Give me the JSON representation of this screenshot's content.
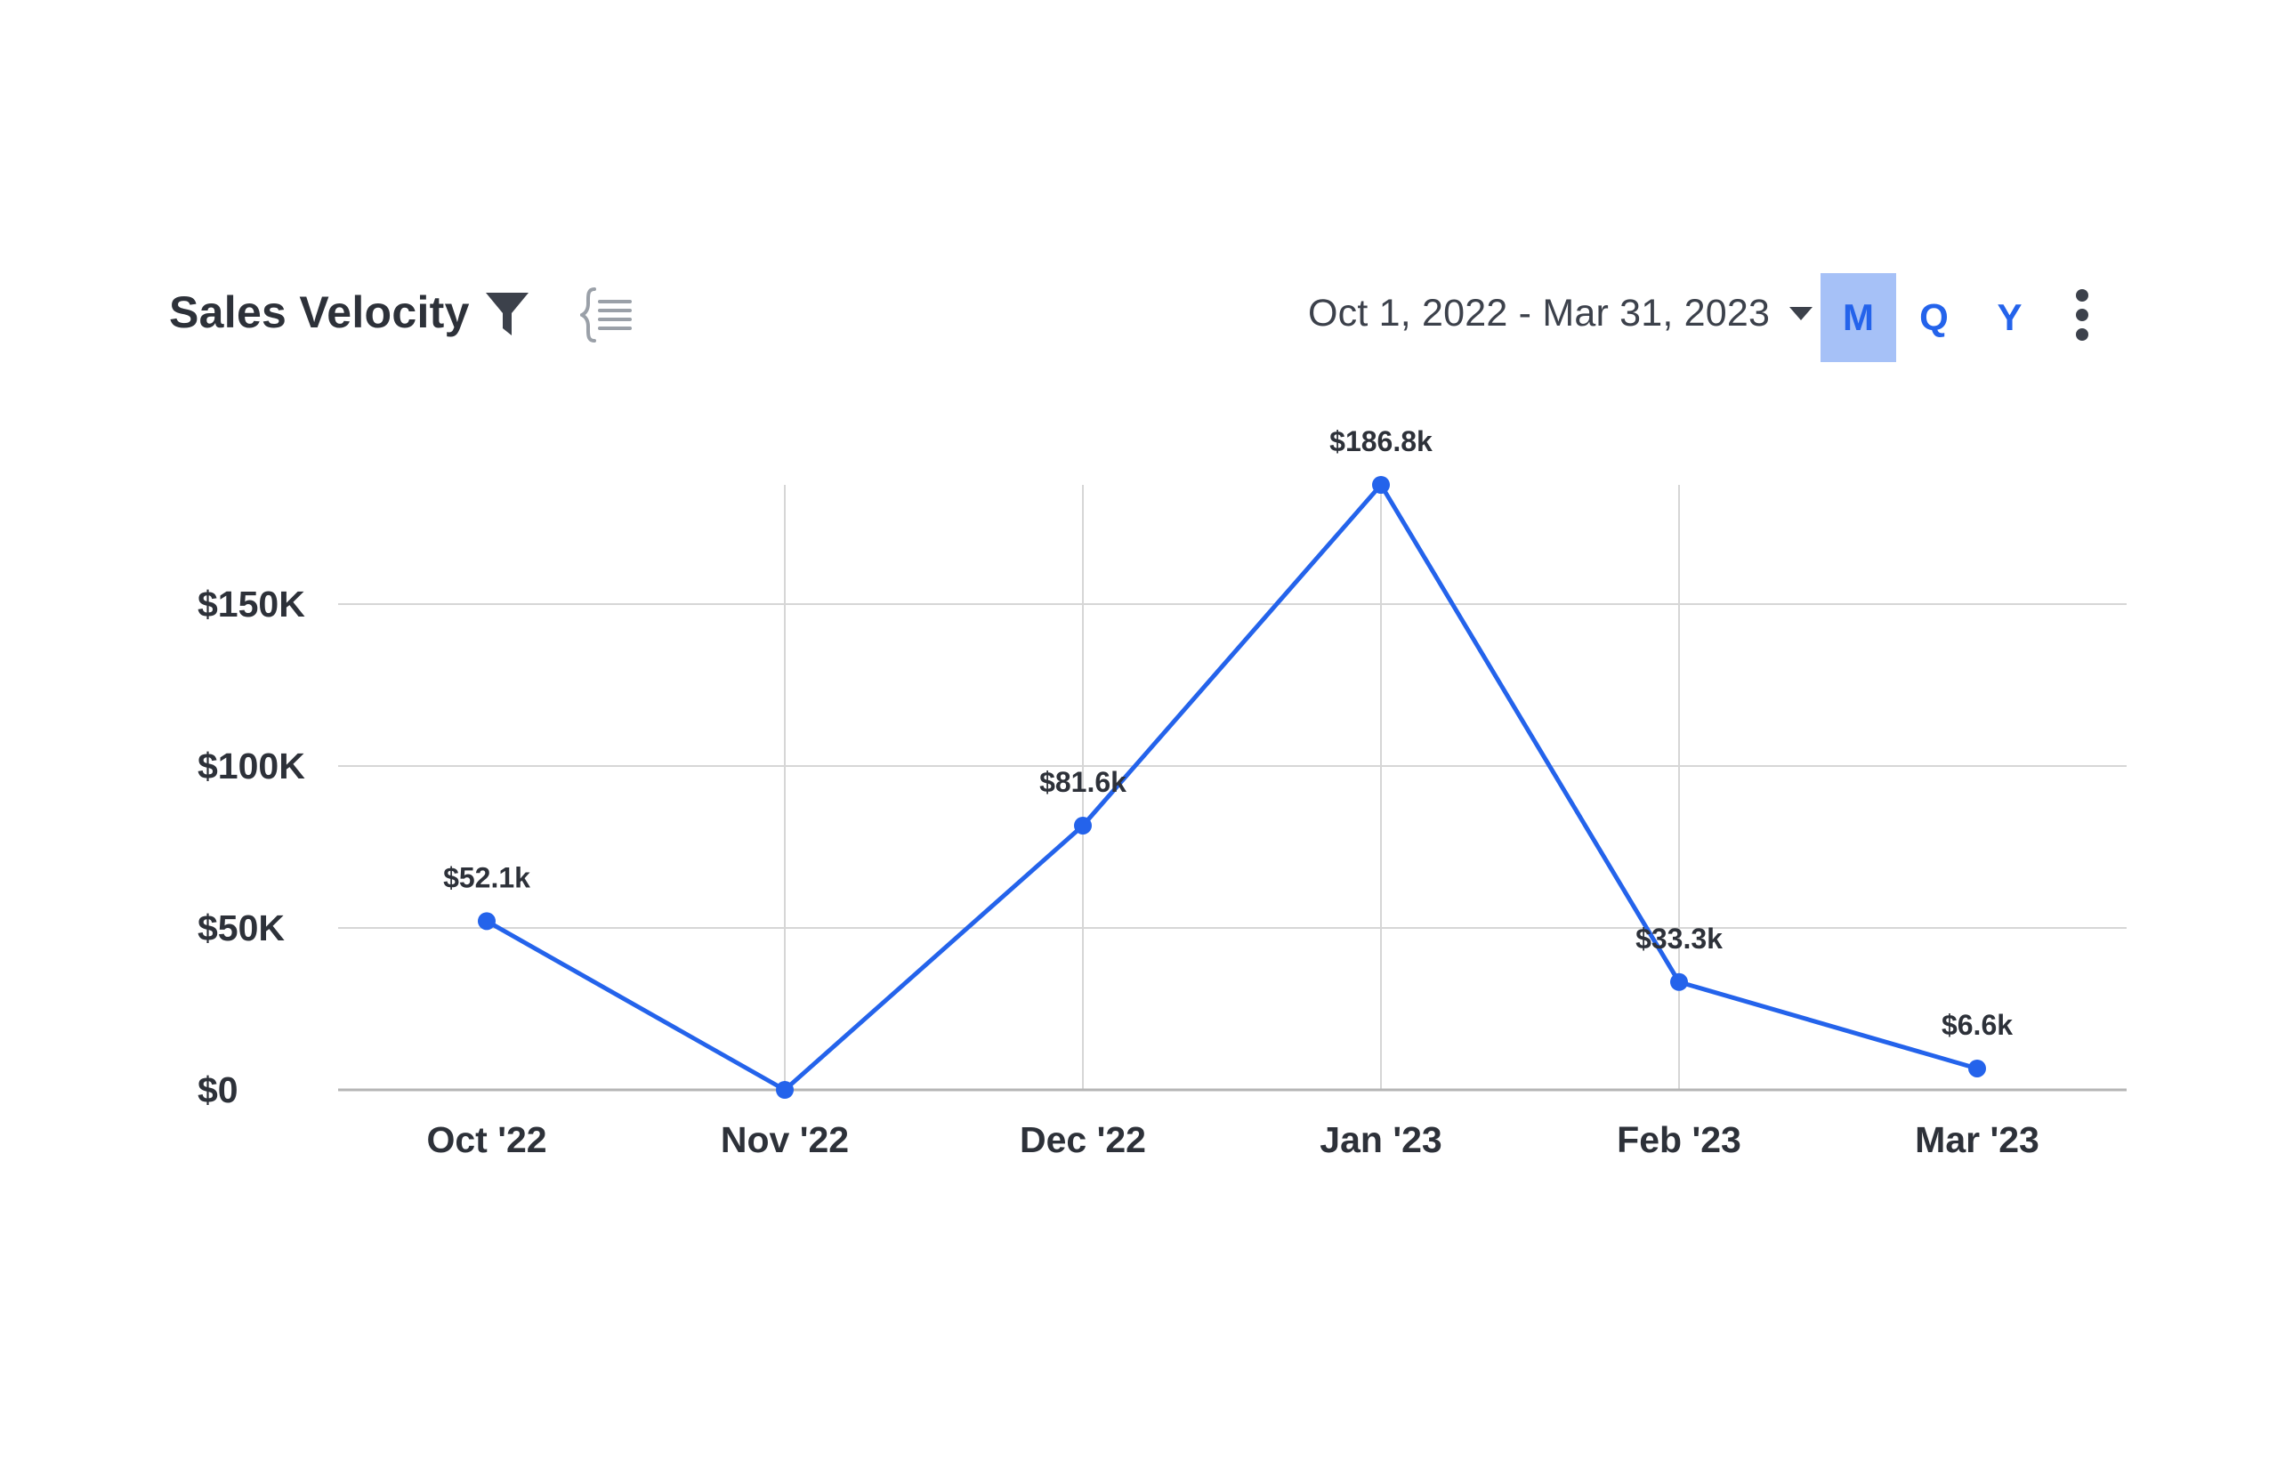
{
  "header": {
    "title": "Sales Velocity",
    "filter_icon": "filter-icon",
    "compare_icon": "comparison-list-icon",
    "date_range": "Oct 1, 2022 - Mar 31, 2023",
    "periods": [
      {
        "label": "M",
        "active": true
      },
      {
        "label": "Q",
        "active": false
      },
      {
        "label": "Y",
        "active": false
      }
    ],
    "more_icon": "kebab-menu-icon"
  },
  "colors": {
    "accent": "#2463eb",
    "active_period_bg": "#a6c1f7",
    "grid": "#d6d6d6",
    "text": "#2d3139"
  },
  "chart_data": {
    "type": "line",
    "categories": [
      "Oct '22",
      "Nov '22",
      "Dec '22",
      "Jan '23",
      "Feb '23",
      "Mar '23"
    ],
    "values": [
      52100,
      0,
      81600,
      186800,
      33300,
      6600
    ],
    "data_labels": [
      "$52.1k",
      "",
      "$81.6k",
      "$186.8k",
      "$33.3k",
      "$6.6k"
    ],
    "y_ticks": [
      0,
      50000,
      100000,
      150000
    ],
    "y_tick_labels": [
      "$0",
      "$50K",
      "$100K",
      "$150K"
    ],
    "ylim": [
      0,
      186800
    ],
    "grid": true,
    "markers": true,
    "title": "",
    "xlabel": "",
    "ylabel": ""
  }
}
